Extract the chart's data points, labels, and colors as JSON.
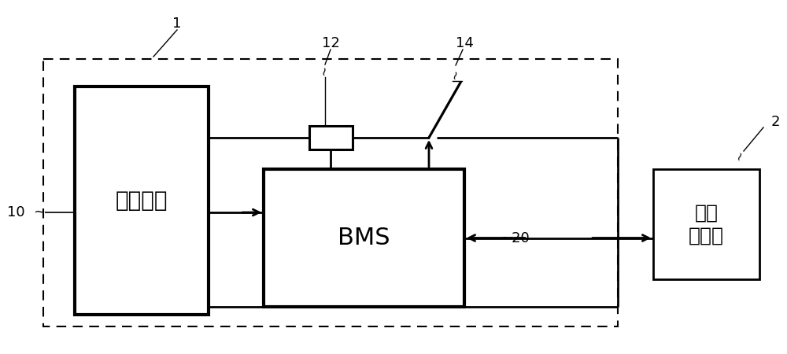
{
  "bg_color": "#ffffff",
  "line_color": "#000000",
  "label_1": "1",
  "label_2": "2",
  "label_10": "10",
  "label_12": "12",
  "label_14": "14",
  "label_20": "20",
  "text_battery": "电池模块",
  "text_bms": "BMS",
  "text_controller": "上级\n控制器",
  "figsize": [
    10.0,
    4.5
  ],
  "dpi": 100
}
